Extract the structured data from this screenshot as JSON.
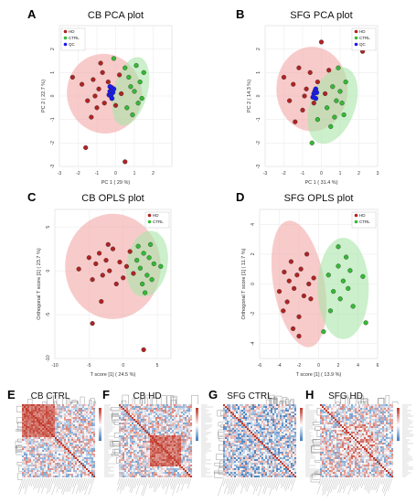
{
  "colors": {
    "hd": "#b22222",
    "ctrl": "#33bb33",
    "qc": "#1a1aee",
    "hd_ellipse": "#f4a8a8",
    "ctrl_ellipse": "#a8e6a8",
    "heat_pos": "#c0392b",
    "heat_neg": "#2e6db4"
  },
  "chart_data": [
    {
      "id": "A",
      "type": "scatter",
      "title": "CB PCA plot",
      "xlabel": "PC 1 ( 29 %)",
      "ylabel": "PC 2 ( 22.7 %)",
      "xlim": [
        -3,
        3
      ],
      "ylim": [
        -3,
        3
      ],
      "xticks": [
        "-3",
        "-2",
        "-1",
        "0",
        "1",
        "2"
      ],
      "yticks": [
        "-3",
        "-2",
        "-1",
        "0",
        "1",
        "2"
      ],
      "legend": [
        "HD",
        "CTRL",
        "QC"
      ],
      "legend_position": "top-left",
      "ellipses": [
        {
          "group": "HD",
          "cx": -0.6,
          "cy": 0.1,
          "rx": 2.0,
          "ry": 1.7,
          "angle": 10
        },
        {
          "group": "CTRL",
          "cx": 0.8,
          "cy": 0.2,
          "rx": 0.9,
          "ry": 1.5,
          "angle": -15
        }
      ],
      "series": [
        {
          "name": "HD",
          "points": [
            [
              -2.3,
              0.8
            ],
            [
              -1.8,
              0.5
            ],
            [
              -1.5,
              -0.2
            ],
            [
              -1.2,
              0.7
            ],
            [
              -1.0,
              -0.5
            ],
            [
              -0.9,
              0.3
            ],
            [
              -0.7,
              1.0
            ],
            [
              -0.6,
              -0.3
            ],
            [
              -0.4,
              0.6
            ],
            [
              -0.2,
              0.2
            ],
            [
              0.0,
              -0.4
            ],
            [
              0.2,
              0.9
            ],
            [
              -1.3,
              -0.9
            ],
            [
              -1.6,
              -2.2
            ],
            [
              0.5,
              -2.8
            ],
            [
              -0.8,
              1.4
            ],
            [
              0.3,
              0.1
            ],
            [
              -1.1,
              0.0
            ]
          ]
        },
        {
          "name": "CTRL",
          "points": [
            [
              -0.1,
              1.6
            ],
            [
              0.5,
              1.2
            ],
            [
              0.8,
              0.4
            ],
            [
              1.0,
              0.2
            ],
            [
              1.2,
              -0.3
            ],
            [
              1.3,
              0.6
            ],
            [
              0.6,
              -0.5
            ],
            [
              0.9,
              -0.8
            ],
            [
              1.5,
              1.0
            ],
            [
              1.1,
              1.3
            ],
            [
              0.7,
              0.8
            ],
            [
              1.4,
              -0.1
            ]
          ]
        },
        {
          "name": "QC",
          "points": [
            [
              -0.3,
              0.2
            ],
            [
              -0.2,
              0.35
            ],
            [
              -0.35,
              0.05
            ],
            [
              -0.15,
              0.15
            ],
            [
              -0.25,
              0.0
            ],
            [
              -0.1,
              0.3
            ],
            [
              -0.3,
              0.4
            ],
            [
              -0.2,
              -0.1
            ]
          ]
        }
      ]
    },
    {
      "id": "B",
      "type": "scatter",
      "title": "SFG PCA plot",
      "xlabel": "PC 1 ( 31.4 %)",
      "ylabel": "PC 2 ( 14.3 %)",
      "xlim": [
        -3,
        3
      ],
      "ylim": [
        -3,
        3
      ],
      "xticks": [
        "-3",
        "-2",
        "-1",
        "0",
        "1",
        "2",
        "3"
      ],
      "yticks": [
        "-3",
        "-2",
        "-1",
        "0",
        "1",
        "2"
      ],
      "legend": [
        "HD",
        "CTRL",
        "QC"
      ],
      "legend_position": "top-right",
      "ellipses": [
        {
          "group": "HD",
          "cx": -0.5,
          "cy": 0.3,
          "rx": 1.9,
          "ry": 1.8,
          "angle": 0
        },
        {
          "group": "CTRL",
          "cx": 0.6,
          "cy": -0.4,
          "rx": 1.2,
          "ry": 1.7,
          "angle": -20
        }
      ],
      "series": [
        {
          "name": "HD",
          "points": [
            [
              -2.0,
              0.8
            ],
            [
              -1.7,
              -0.2
            ],
            [
              -1.5,
              0.5
            ],
            [
              -1.2,
              1.2
            ],
            [
              -1.0,
              -0.6
            ],
            [
              -0.8,
              0.3
            ],
            [
              -0.6,
              1.0
            ],
            [
              -0.4,
              -0.3
            ],
            [
              -0.2,
              0.6
            ],
            [
              0.0,
              2.3
            ],
            [
              0.2,
              0.1
            ],
            [
              0.4,
              1.1
            ],
            [
              -1.4,
              -1.1
            ],
            [
              2.2,
              1.9
            ],
            [
              -0.9,
              0.0
            ]
          ]
        },
        {
          "name": "CTRL",
          "points": [
            [
              0.3,
              -0.5
            ],
            [
              0.6,
              0.4
            ],
            [
              0.8,
              -0.2
            ],
            [
              1.0,
              0.2
            ],
            [
              1.2,
              -0.8
            ],
            [
              0.5,
              -1.3
            ],
            [
              0.9,
              1.2
            ],
            [
              -0.2,
              -1.0
            ],
            [
              1.3,
              0.6
            ],
            [
              0.7,
              -0.9
            ],
            [
              -0.5,
              -2.0
            ],
            [
              1.1,
              -0.3
            ]
          ]
        },
        {
          "name": "QC",
          "points": [
            [
              -0.4,
              0.1
            ],
            [
              -0.3,
              0.3
            ],
            [
              -0.45,
              -0.05
            ],
            [
              -0.35,
              0.2
            ],
            [
              -0.3,
              -0.1
            ],
            [
              -0.25,
              0.15
            ]
          ]
        }
      ]
    },
    {
      "id": "C",
      "type": "scatter",
      "title": "CB OPLS plot",
      "xlabel": "T score [1] ( 24.5 %)",
      "ylabel": "Orthogonal T score [1] ( 23.7 %)",
      "xlim": [
        -10,
        7
      ],
      "ylim": [
        -10,
        7
      ],
      "xticks": [
        "-10",
        "-5",
        "0",
        "5"
      ],
      "yticks": [
        "-10",
        "-5",
        "0",
        "5"
      ],
      "legend": [
        "HD",
        "CTRL"
      ],
      "legend_position": "top-right",
      "ellipses": [
        {
          "group": "HD",
          "cx": -1.5,
          "cy": 0.5,
          "rx": 7.0,
          "ry": 6.0,
          "angle": 0
        },
        {
          "group": "CTRL",
          "cx": 3.5,
          "cy": 0.8,
          "rx": 3.0,
          "ry": 3.8,
          "angle": -10
        }
      ],
      "series": [
        {
          "name": "HD",
          "points": [
            [
              -6.5,
              0.2
            ],
            [
              -5.0,
              1.5
            ],
            [
              -4.5,
              -1.0
            ],
            [
              -4.0,
              0.8
            ],
            [
              -3.5,
              2.0
            ],
            [
              -3.0,
              -0.5
            ],
            [
              -2.5,
              1.2
            ],
            [
              -2.0,
              0.0
            ],
            [
              -1.5,
              2.5
            ],
            [
              -1.0,
              -1.5
            ],
            [
              -0.5,
              1.0
            ],
            [
              0.0,
              -0.8
            ],
            [
              0.5,
              0.5
            ],
            [
              1.0,
              2.2
            ],
            [
              -3.2,
              -3.5
            ],
            [
              -4.5,
              -6.0
            ],
            [
              3.0,
              -9.0
            ],
            [
              1.5,
              -0.3
            ],
            [
              -2.2,
              3.0
            ]
          ]
        },
        {
          "name": "CTRL",
          "points": [
            [
              2.0,
              1.2
            ],
            [
              2.5,
              0.3
            ],
            [
              3.0,
              2.0
            ],
            [
              3.5,
              -0.5
            ],
            [
              3.8,
              1.5
            ],
            [
              4.0,
              3.0
            ],
            [
              4.5,
              0.8
            ],
            [
              2.8,
              -1.5
            ],
            [
              3.2,
              -2.5
            ],
            [
              5.5,
              0.5
            ],
            [
              2.2,
              2.8
            ],
            [
              4.2,
              -1.0
            ]
          ]
        }
      ]
    },
    {
      "id": "D",
      "type": "scatter",
      "title": "SFG OPLS plot",
      "xlabel": "T score [1] ( 13.9 %)",
      "ylabel": "Orthogonal T score [1] ( 11.7 %)",
      "xlim": [
        -6,
        6
      ],
      "ylim": [
        -5,
        5
      ],
      "xticks": [
        "-6",
        "-4",
        "-2",
        "0",
        "2",
        "4",
        "6"
      ],
      "yticks": [
        "-4",
        "-2",
        "0",
        "2",
        "4"
      ],
      "legend": [
        "HD",
        "CTRL"
      ],
      "legend_position": "top-right",
      "ellipses": [
        {
          "group": "HD",
          "cx": -2.0,
          "cy": 0.0,
          "rx": 2.6,
          "ry": 4.3,
          "angle": 10
        },
        {
          "group": "CTRL",
          "cx": 2.5,
          "cy": -0.3,
          "rx": 2.6,
          "ry": 3.4,
          "angle": 0
        }
      ],
      "series": [
        {
          "name": "HD",
          "points": [
            [
              -4.0,
              -0.5
            ],
            [
              -3.5,
              0.8
            ],
            [
              -3.2,
              -1.2
            ],
            [
              -3.0,
              0.2
            ],
            [
              -2.8,
              1.5
            ],
            [
              -2.5,
              -0.3
            ],
            [
              -2.2,
              0.6
            ],
            [
              -2.0,
              -2.2
            ],
            [
              -1.8,
              1.0
            ],
            [
              -1.5,
              -0.8
            ],
            [
              -1.2,
              2.0
            ],
            [
              -1.0,
              0.0
            ],
            [
              -0.8,
              -1.0
            ],
            [
              -2.6,
              -3.0
            ],
            [
              -2.0,
              -3.5
            ],
            [
              -3.6,
              -1.8
            ],
            [
              -0.5,
              0.4
            ]
          ]
        },
        {
          "name": "CTRL",
          "points": [
            [
              1.0,
              0.6
            ],
            [
              1.5,
              -0.5
            ],
            [
              2.0,
              1.2
            ],
            [
              2.2,
              -1.0
            ],
            [
              2.5,
              0.2
            ],
            [
              2.8,
              1.8
            ],
            [
              3.0,
              -0.3
            ],
            [
              3.2,
              0.9
            ],
            [
              1.2,
              -1.8
            ],
            [
              4.5,
              0.5
            ],
            [
              4.8,
              -2.6
            ],
            [
              0.5,
              -3.2
            ],
            [
              2.0,
              2.5
            ],
            [
              3.5,
              -1.5
            ]
          ]
        }
      ]
    },
    {
      "id": "E",
      "type": "heatmap",
      "title": "CB CTRL",
      "pattern": "block-top-left"
    },
    {
      "id": "F",
      "type": "heatmap",
      "title": "CB HD",
      "pattern": "block-bottom-right"
    },
    {
      "id": "G",
      "type": "heatmap",
      "title": "SFG CTRL",
      "pattern": "mixed-blue"
    },
    {
      "id": "H",
      "type": "heatmap",
      "title": "SFG HD",
      "pattern": "mixed"
    }
  ]
}
